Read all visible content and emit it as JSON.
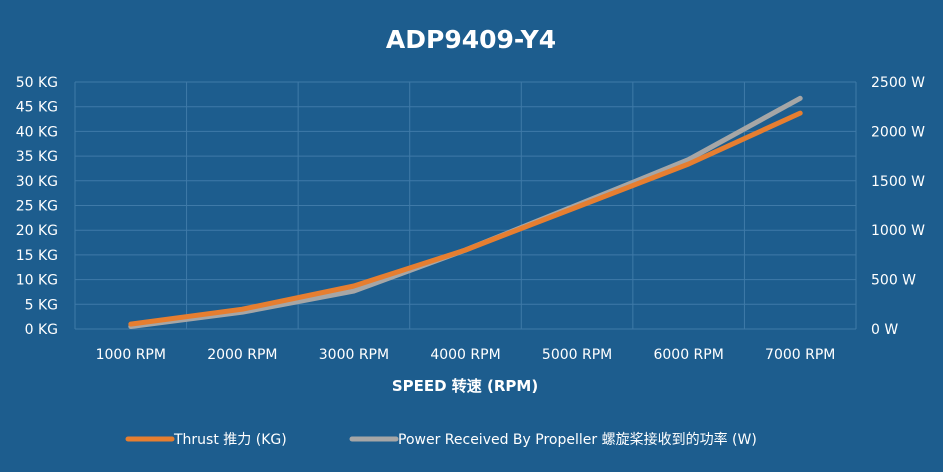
{
  "chart_data": {
    "type": "line",
    "title": "ADP9409-Y4",
    "xlabel": "SPEED 转速 (RPM)",
    "categories": [
      "1000 RPM",
      "2000 RPM",
      "3000 RPM",
      "4000 RPM",
      "5000 RPM",
      "6000 RPM",
      "7000 RPM"
    ],
    "x": [
      1000,
      2000,
      3000,
      4000,
      5000,
      6000,
      7000
    ],
    "y_left": {
      "ylim": [
        0,
        50
      ],
      "ticks": [
        0,
        5,
        10,
        15,
        20,
        25,
        30,
        35,
        40,
        45,
        50
      ],
      "tick_labels": [
        "0 KG",
        "5 KG",
        "10 KG",
        "15 KG",
        "20 KG",
        "25 KG",
        "30 KG",
        "35 KG",
        "40 KG",
        "45 KG",
        "50 KG"
      ]
    },
    "y_right": {
      "ylim": [
        0,
        2500
      ],
      "ticks": [
        0,
        500,
        1000,
        1500,
        2000,
        2500
      ],
      "tick_labels": [
        "0 W",
        "500 W",
        "1000 W",
        "1500 W",
        "2000 W",
        "2500 W"
      ]
    },
    "grid": true,
    "legend_position": "bottom",
    "series": [
      {
        "name": "Thrust 推力 (KG)",
        "axis": "left",
        "color": "#e67e30",
        "values": [
          1.0,
          4.0,
          8.7,
          16.0,
          24.7,
          33.4,
          43.7
        ]
      },
      {
        "name": "Power Received By Propeller 螺旋桨接收到的功率 (W)",
        "axis": "right",
        "color": "#a6a6a6",
        "values": [
          25,
          170,
          385,
          800,
          1255,
          1715,
          2335
        ]
      }
    ]
  }
}
